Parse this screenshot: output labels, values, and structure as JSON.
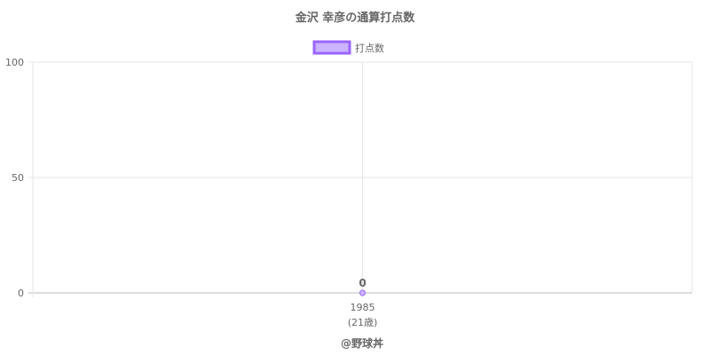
{
  "chart_data": {
    "type": "line",
    "title": "金沢 幸彦の通算打点数",
    "categories": [
      "1985"
    ],
    "category_sublabels": [
      "(21歳)"
    ],
    "series": [
      {
        "name": "打点数",
        "values": [
          0
        ],
        "color": "#9966ff",
        "fill": "#ccb3ff"
      }
    ],
    "data_labels": [
      "0"
    ],
    "ylim": [
      0,
      100
    ],
    "yticks": [
      "0",
      "50",
      "100"
    ],
    "grid": true,
    "legend": "top"
  },
  "footer": {
    "credit": "@野球丼"
  }
}
